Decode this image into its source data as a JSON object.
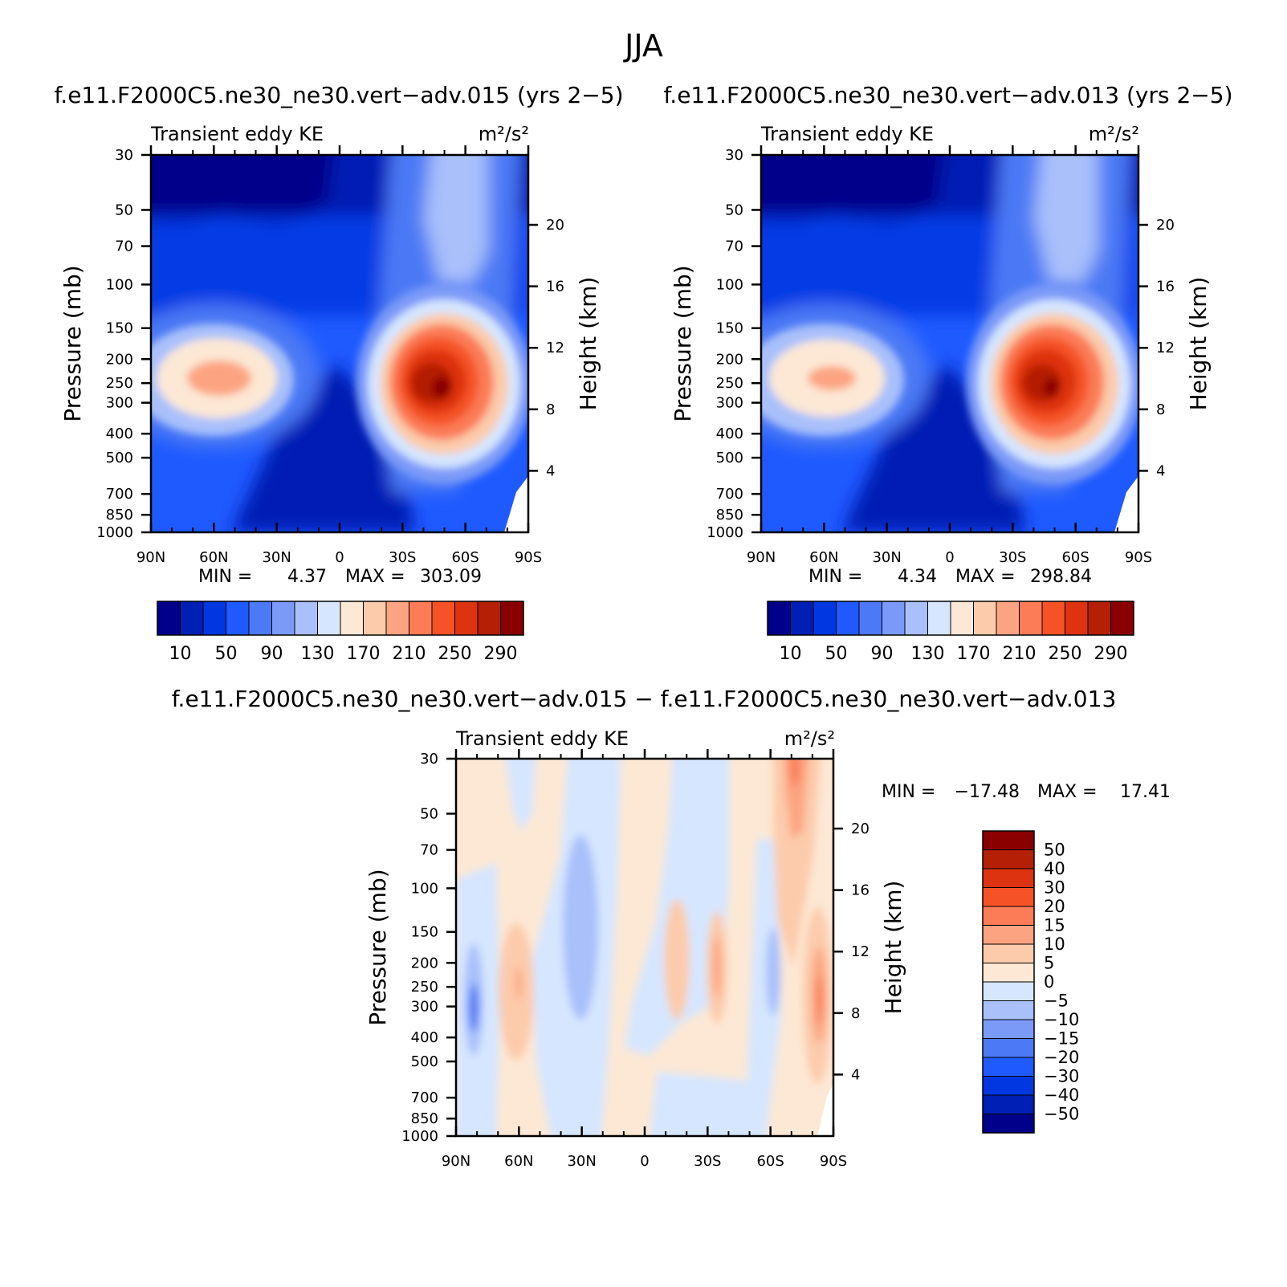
{
  "figure_title": "JJA",
  "colors": {
    "ke_levels": [
      "#00008a",
      "#001fb4",
      "#0037e1",
      "#1f5aff",
      "#4c79f5",
      "#7b9af8",
      "#a9c0fb",
      "#d6e6ff",
      "#fde8d5",
      "#fccbab",
      "#fca481",
      "#fb7c57",
      "#f55227",
      "#dd3310",
      "#b41f06",
      "#8a0000"
    ],
    "diff_levels": [
      "#00008a",
      "#001fb4",
      "#0037e1",
      "#1f5aff",
      "#4c79f5",
      "#7b9af8",
      "#a9c0fb",
      "#d6e6ff",
      "#fde8d5",
      "#fccbab",
      "#fca481",
      "#fb7c57",
      "#f55227",
      "#dd3310",
      "#b41f06",
      "#8a0000"
    ]
  },
  "chart_data": [
    {
      "type": "heatmap",
      "title": "f.e11.F2000C5.ne30_ne30.vert−adv.015 (yrs 2−5)",
      "left_label": "Transient eddy KE",
      "right_label": "m²/s²",
      "ylabel": "Pressure (mb)",
      "ylabel_right": "Height (km)",
      "x_ticks": [
        "90N",
        "60N",
        "30N",
        "0",
        "30S",
        "60S",
        "90S"
      ],
      "y_ticks": [
        "30",
        "50",
        "70",
        "100",
        "150",
        "200",
        "250",
        "300",
        "400",
        "500",
        "700",
        "850",
        "1000"
      ],
      "y_right_ticks": [
        "20",
        "16",
        "12",
        "8",
        "4"
      ],
      "xlim": [
        90,
        -90
      ],
      "ylim": [
        30,
        1000
      ],
      "min_label": "MIN =",
      "min_value": "4.37",
      "max_label": "MAX =",
      "max_value": "303.09",
      "colorbar_labels": [
        "10",
        "50",
        "90",
        "130",
        "170",
        "210",
        "250",
        "290"
      ],
      "features": [
        {
          "lat": 55,
          "p": 270,
          "peak": 175
        },
        {
          "lat": -43,
          "p": 290,
          "peak": 303.09
        },
        {
          "lat": -57,
          "p": 260,
          "peak": 285
        }
      ]
    },
    {
      "type": "heatmap",
      "title": "f.e11.F2000C5.ne30_ne30.vert−adv.013 (yrs 2−5)",
      "left_label": "Transient eddy KE",
      "right_label": "m²/s²",
      "ylabel": "Pressure (mb)",
      "ylabel_right": "Height (km)",
      "x_ticks": [
        "90N",
        "60N",
        "30N",
        "0",
        "30S",
        "60S",
        "90S"
      ],
      "y_ticks": [
        "30",
        "50",
        "70",
        "100",
        "150",
        "200",
        "250",
        "300",
        "400",
        "500",
        "700",
        "850",
        "1000"
      ],
      "y_right_ticks": [
        "20",
        "16",
        "12",
        "8",
        "4"
      ],
      "xlim": [
        90,
        -90
      ],
      "ylim": [
        30,
        1000
      ],
      "min_label": "MIN =",
      "min_value": "4.34",
      "max_label": "MAX =",
      "max_value": "298.84",
      "colorbar_labels": [
        "10",
        "50",
        "90",
        "130",
        "170",
        "210",
        "250",
        "290"
      ],
      "features": [
        {
          "lat": 55,
          "p": 270,
          "peak": 165
        },
        {
          "lat": -43,
          "p": 290,
          "peak": 298.84
        },
        {
          "lat": -57,
          "p": 260,
          "peak": 280
        }
      ]
    },
    {
      "type": "heatmap",
      "title": "f.e11.F2000C5.ne30_ne30.vert−adv.015 − f.e11.F2000C5.ne30_ne30.vert−adv.013",
      "left_label": "Transient eddy KE",
      "right_label": "m²/s²",
      "ylabel": "Pressure (mb)",
      "ylabel_right": "Height (km)",
      "x_ticks": [
        "90N",
        "60N",
        "30N",
        "0",
        "30S",
        "60S",
        "90S"
      ],
      "y_ticks": [
        "30",
        "50",
        "70",
        "100",
        "150",
        "200",
        "250",
        "300",
        "400",
        "500",
        "700",
        "850",
        "1000"
      ],
      "y_right_ticks": [
        "20",
        "16",
        "12",
        "8",
        "4"
      ],
      "xlim": [
        90,
        -90
      ],
      "ylim": [
        30,
        1000
      ],
      "min_label": "MIN =",
      "min_value": "−17.48",
      "max_label": "MAX =",
      "max_value": "17.41",
      "colorbar_labels": [
        "50",
        "40",
        "30",
        "20",
        "15",
        "10",
        "5",
        "0",
        "−5",
        "−10",
        "−15",
        "−20",
        "−30",
        "−40",
        "−50"
      ],
      "features": [
        {
          "lat": 82,
          "p": 320,
          "value": -17.48
        },
        {
          "lat": 60,
          "p": 230,
          "value": 10
        },
        {
          "lat": 35,
          "p": 180,
          "value": -8
        },
        {
          "lat": -30,
          "p": 230,
          "value": 12
        },
        {
          "lat": -60,
          "p": 250,
          "value": -9
        },
        {
          "lat": -70,
          "p": 40,
          "value": 12
        },
        {
          "lat": -85,
          "p": 300,
          "value": 17.41
        }
      ]
    }
  ]
}
